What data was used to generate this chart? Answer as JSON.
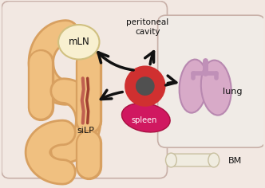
{
  "bg_outer": "#f2e8e2",
  "bg_left_box": "#f2e8e2",
  "bg_right_box": "#f0ebe6",
  "intestine_color": "#f0c080",
  "intestine_outline": "#d8a060",
  "mln_color": "#f8f0d0",
  "mln_outline": "#d0c080",
  "cell_outer": "#d03030",
  "cell_inner": "#505050",
  "spleen_color": "#d01860",
  "spleen_outline": "#a81040",
  "lung_fill": "#d8aac8",
  "lung_outline": "#b888b0",
  "trachea_color": "#c090b8",
  "bone_color": "#f0ece0",
  "bone_outline": "#c8c0a0",
  "arrow_color": "#111111",
  "text_color": "#111111",
  "vessel_color1": "#c06050",
  "vessel_color2": "#a04030",
  "label_peritoneal": "peritoneal\ncavity",
  "label_mln": "mLN",
  "label_silp": "siLP",
  "label_spleen": "spleen",
  "label_lung": "lung",
  "label_bm": "BM",
  "outer_edge": "#c8b0a8",
  "inner_left_edge": "#c8b0a8",
  "inner_right_edge": "#c8b0a8"
}
